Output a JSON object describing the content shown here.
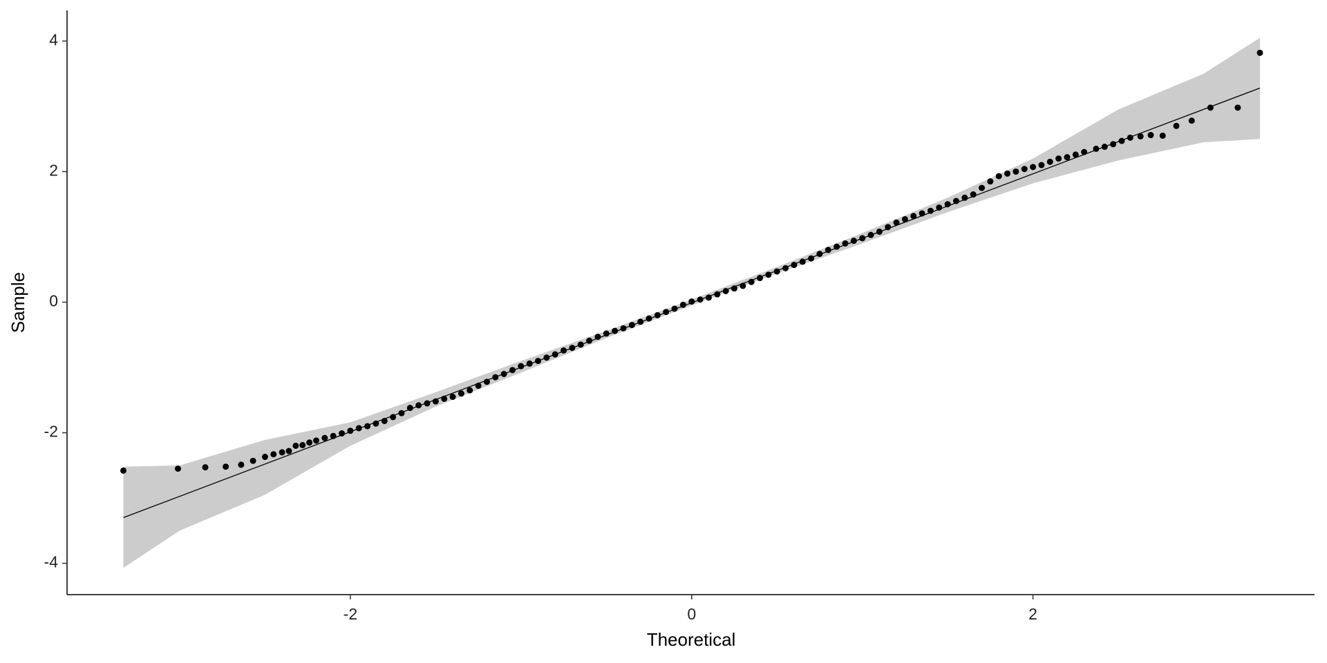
{
  "chart_data": {
    "type": "scatter",
    "x_label": "Theoretical",
    "y_label": "Sample",
    "xlim": [
      -3.66,
      3.65
    ],
    "ylim": [
      -4.48,
      4.47
    ],
    "xticks": [
      -2,
      0,
      2
    ],
    "yticks": [
      -4,
      -2,
      0,
      2,
      4
    ],
    "color": "#000000",
    "x": [
      -3.33,
      -3.01,
      -2.85,
      -2.73,
      -2.64,
      -2.57,
      -2.5,
      -2.45,
      -2.4,
      -2.36,
      -2.32,
      -2.28,
      -2.24,
      -2.2,
      -2.15,
      -2.1,
      -2.05,
      -2.0,
      -1.95,
      -1.9,
      -1.85,
      -1.8,
      -1.75,
      -1.7,
      -1.65,
      -1.6,
      -1.55,
      -1.5,
      -1.45,
      -1.4,
      -1.35,
      -1.3,
      -1.25,
      -1.2,
      -1.15,
      -1.1,
      -1.05,
      -1.0,
      -0.95,
      -0.9,
      -0.85,
      -0.8,
      -0.75,
      -0.7,
      -0.65,
      -0.6,
      -0.55,
      -0.5,
      -0.45,
      -0.4,
      -0.35,
      -0.3,
      -0.25,
      -0.2,
      -0.15,
      -0.1,
      -0.05,
      0,
      0.05,
      0.1,
      0.15,
      0.2,
      0.25,
      0.3,
      0.35,
      0.4,
      0.45,
      0.5,
      0.55,
      0.6,
      0.65,
      0.7,
      0.75,
      0.8,
      0.85,
      0.9,
      0.95,
      1.0,
      1.05,
      1.1,
      1.15,
      1.2,
      1.25,
      1.3,
      1.35,
      1.4,
      1.45,
      1.5,
      1.55,
      1.6,
      1.65,
      1.7,
      1.75,
      1.8,
      1.85,
      1.9,
      1.95,
      2.0,
      2.05,
      2.1,
      2.15,
      2.2,
      2.25,
      2.3,
      2.37,
      2.42,
      2.47,
      2.52,
      2.57,
      2.63,
      2.69,
      2.76,
      2.84,
      2.93,
      3.04,
      3.2,
      3.33
    ],
    "values": [
      -2.58,
      -2.55,
      -2.53,
      -2.52,
      -2.49,
      -2.43,
      -2.37,
      -2.33,
      -2.3,
      -2.28,
      -2.2,
      -2.19,
      -2.15,
      -2.12,
      -2.08,
      -2.05,
      -2.01,
      -1.97,
      -1.93,
      -1.9,
      -1.86,
      -1.82,
      -1.76,
      -1.7,
      -1.62,
      -1.58,
      -1.55,
      -1.52,
      -1.48,
      -1.45,
      -1.4,
      -1.35,
      -1.28,
      -1.22,
      -1.15,
      -1.1,
      -1.04,
      -0.98,
      -0.94,
      -0.9,
      -0.85,
      -0.8,
      -0.74,
      -0.7,
      -0.65,
      -0.59,
      -0.53,
      -0.48,
      -0.44,
      -0.4,
      -0.35,
      -0.3,
      -0.25,
      -0.2,
      -0.15,
      -0.1,
      -0.04,
      0.01,
      0.04,
      0.07,
      0.12,
      0.17,
      0.21,
      0.25,
      0.31,
      0.37,
      0.42,
      0.47,
      0.52,
      0.57,
      0.62,
      0.67,
      0.74,
      0.8,
      0.85,
      0.9,
      0.94,
      0.98,
      1.03,
      1.08,
      1.15,
      1.22,
      1.27,
      1.32,
      1.36,
      1.4,
      1.45,
      1.5,
      1.55,
      1.6,
      1.65,
      1.75,
      1.85,
      1.93,
      1.97,
      2.0,
      2.04,
      2.07,
      2.1,
      2.15,
      2.2,
      2.22,
      2.26,
      2.3,
      2.35,
      2.38,
      2.42,
      2.47,
      2.52,
      2.54,
      2.56,
      2.55,
      2.7,
      2.78,
      2.98,
      2.98,
      3.82
    ],
    "band": {
      "color": "#cccccc",
      "x": [
        -3.33,
        -3,
        -2.5,
        -2,
        -1.5,
        -1,
        -0.5,
        0,
        0.5,
        1,
        1.5,
        2,
        2.5,
        3,
        3.33
      ],
      "upper": [
        -2.52,
        -2.5,
        -2.11,
        -1.84,
        -1.38,
        -0.9,
        -0.44,
        0.04,
        0.54,
        1.06,
        1.6,
        2.2,
        2.95,
        3.5,
        4.05
      ],
      "lower": [
        -4.07,
        -3.5,
        -2.95,
        -2.2,
        -1.6,
        -1.08,
        -0.55,
        -0.05,
        0.44,
        0.9,
        1.38,
        1.82,
        2.17,
        2.45,
        2.5
      ]
    },
    "reference_line": {
      "color": "#000000",
      "x": [
        -3.33,
        3.33
      ],
      "values": [
        -3.3,
        3.28
      ]
    }
  }
}
